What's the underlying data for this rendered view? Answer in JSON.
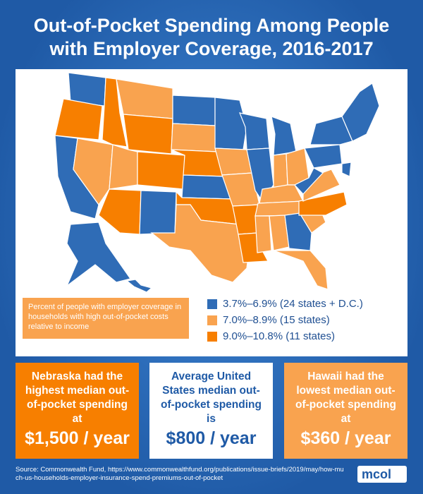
{
  "header": {
    "title_lines": [
      "Out-of-Pocket Spending Among People",
      "with Employer Coverage, 2016-2017"
    ]
  },
  "legend": {
    "description": "Percent of people with employer coverage in households with high out-of-pocket costs relative to income",
    "items": [
      {
        "label": "3.7%–6.9% (24 states + D.C.)",
        "color": "#2f6cb6"
      },
      {
        "label": "7.0%–8.9% (15 states)",
        "color": "#f9a34f"
      },
      {
        "label": "9.0%–10.8% (11 states)",
        "color": "#f77f00"
      }
    ]
  },
  "callouts": [
    {
      "text": "Nebraska had the highest median out-of-pocket spending at",
      "figure": "$1,500 / year",
      "color": "#f77f00"
    },
    {
      "text": "Average United States median out-of-pocket spending is",
      "figure": "$800 / year",
      "color": "#ffffff"
    },
    {
      "text": "Hawaii had the lowest median out-of-pocket spending at",
      "figure": "$360 / year",
      "color": "#f9a34f"
    }
  ],
  "footer": {
    "source": "Source:  Commonwealth Fund, https://www.commonwealthfund.org/publications/issue-briefs/2019/may/how-much-us-households-employer-insurance-spend-premiums-out-of-pocket",
    "logo": "mcol"
  }
}
